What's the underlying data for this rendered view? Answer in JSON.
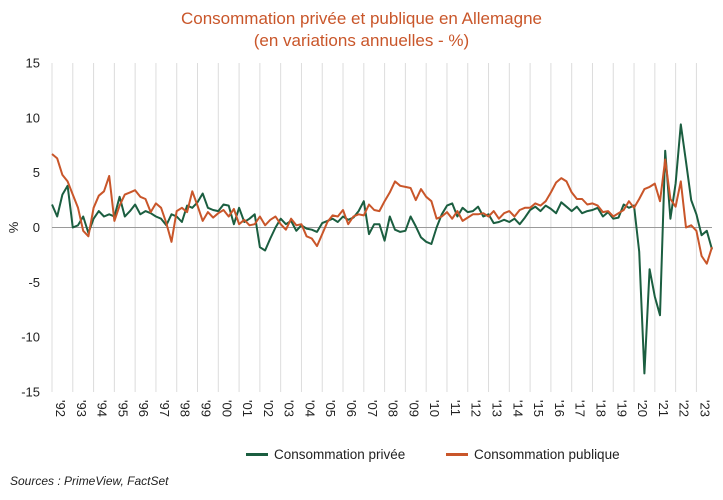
{
  "chart_data": {
    "type": "line",
    "title": "Consommation privée et publique en Allemagne",
    "subtitle": "(en variations annuelles - %)",
    "ylabel": "%",
    "ylim": [
      -15,
      15
    ],
    "yticks": [
      15,
      10,
      5,
      0,
      -5,
      -10,
      -15
    ],
    "xlim": [
      1992.0,
      2023.75
    ],
    "xticks": [
      {
        "year": 1992,
        "label": "'92"
      },
      {
        "year": 1993,
        "label": "'93"
      },
      {
        "year": 1994,
        "label": "'94"
      },
      {
        "year": 1995,
        "label": "'95"
      },
      {
        "year": 1996,
        "label": "'96"
      },
      {
        "year": 1997,
        "label": "'97"
      },
      {
        "year": 1998,
        "label": "'98"
      },
      {
        "year": 1999,
        "label": "'99"
      },
      {
        "year": 2000,
        "label": "'00"
      },
      {
        "year": 2001,
        "label": "'01"
      },
      {
        "year": 2002,
        "label": "'02"
      },
      {
        "year": 2003,
        "label": "'03"
      },
      {
        "year": 2004,
        "label": "'04"
      },
      {
        "year": 2005,
        "label": "'05"
      },
      {
        "year": 2006,
        "label": "'06"
      },
      {
        "year": 2007,
        "label": "'07"
      },
      {
        "year": 2008,
        "label": "'08"
      },
      {
        "year": 2009,
        "label": "'09"
      },
      {
        "year": 2010,
        "label": "'10"
      },
      {
        "year": 2011,
        "label": "'11"
      },
      {
        "year": 2012,
        "label": "'12"
      },
      {
        "year": 2013,
        "label": "'13"
      },
      {
        "year": 2014,
        "label": "'14"
      },
      {
        "year": 2015,
        "label": "'15"
      },
      {
        "year": 2016,
        "label": "'16"
      },
      {
        "year": 2017,
        "label": "'17"
      },
      {
        "year": 2018,
        "label": "'18"
      },
      {
        "year": 2019,
        "label": "'19"
      },
      {
        "year": 2020,
        "label": "'20"
      },
      {
        "year": 2021,
        "label": "'21"
      },
      {
        "year": 2022,
        "label": "'22"
      },
      {
        "year": 2023,
        "label": "'23"
      }
    ],
    "grid": "vertical",
    "legend_position": "bottom",
    "series": [
      {
        "name": "Consommation privée",
        "color": "#1B5E40",
        "points": [
          [
            1992.0,
            2.1
          ],
          [
            1992.25,
            1.0
          ],
          [
            1992.5,
            3.0
          ],
          [
            1992.75,
            3.8
          ],
          [
            1993.0,
            0.0
          ],
          [
            1993.25,
            0.2
          ],
          [
            1993.5,
            1.0
          ],
          [
            1993.75,
            -0.5
          ],
          [
            1994.0,
            0.8
          ],
          [
            1994.25,
            1.5
          ],
          [
            1994.5,
            1.0
          ],
          [
            1994.75,
            1.2
          ],
          [
            1995.0,
            1.0
          ],
          [
            1995.25,
            2.8
          ],
          [
            1995.5,
            1.0
          ],
          [
            1995.75,
            1.5
          ],
          [
            1996.0,
            2.1
          ],
          [
            1996.25,
            1.2
          ],
          [
            1996.5,
            1.5
          ],
          [
            1996.75,
            1.3
          ],
          [
            1997.0,
            1.0
          ],
          [
            1997.25,
            0.8
          ],
          [
            1997.5,
            0.2
          ],
          [
            1997.75,
            1.2
          ],
          [
            1998.0,
            1.0
          ],
          [
            1998.25,
            0.5
          ],
          [
            1998.5,
            2.0
          ],
          [
            1998.75,
            1.8
          ],
          [
            1999.0,
            2.3
          ],
          [
            1999.25,
            3.1
          ],
          [
            1999.5,
            1.8
          ],
          [
            1999.75,
            1.6
          ],
          [
            2000.0,
            1.5
          ],
          [
            2000.25,
            2.1
          ],
          [
            2000.5,
            2.0
          ],
          [
            2000.75,
            0.3
          ],
          [
            2001.0,
            1.8
          ],
          [
            2001.25,
            0.5
          ],
          [
            2001.5,
            0.8
          ],
          [
            2001.75,
            1.2
          ],
          [
            2002.0,
            -1.8
          ],
          [
            2002.25,
            -2.1
          ],
          [
            2002.5,
            -1.0
          ],
          [
            2002.75,
            0.0
          ],
          [
            2003.0,
            0.8
          ],
          [
            2003.25,
            0.3
          ],
          [
            2003.5,
            0.6
          ],
          [
            2003.75,
            -0.3
          ],
          [
            2004.0,
            0.2
          ],
          [
            2004.25,
            -0.1
          ],
          [
            2004.5,
            -0.2
          ],
          [
            2004.75,
            -0.4
          ],
          [
            2005.0,
            0.4
          ],
          [
            2005.25,
            0.6
          ],
          [
            2005.5,
            0.8
          ],
          [
            2005.75,
            0.5
          ],
          [
            2006.0,
            1.0
          ],
          [
            2006.25,
            0.7
          ],
          [
            2006.5,
            0.9
          ],
          [
            2006.75,
            1.5
          ],
          [
            2007.0,
            2.4
          ],
          [
            2007.25,
            -0.6
          ],
          [
            2007.5,
            0.3
          ],
          [
            2007.75,
            0.3
          ],
          [
            2008.0,
            -1.2
          ],
          [
            2008.25,
            1.0
          ],
          [
            2008.5,
            -0.2
          ],
          [
            2008.75,
            -0.4
          ],
          [
            2009.0,
            -0.3
          ],
          [
            2009.25,
            1.0
          ],
          [
            2009.5,
            0.1
          ],
          [
            2009.75,
            -0.9
          ],
          [
            2010.0,
            -1.3
          ],
          [
            2010.25,
            -1.5
          ],
          [
            2010.5,
            0.0
          ],
          [
            2010.75,
            1.2
          ],
          [
            2011.0,
            2.0
          ],
          [
            2011.25,
            2.2
          ],
          [
            2011.5,
            1.0
          ],
          [
            2011.75,
            1.8
          ],
          [
            2012.0,
            1.4
          ],
          [
            2012.25,
            1.5
          ],
          [
            2012.5,
            1.9
          ],
          [
            2012.75,
            1.0
          ],
          [
            2013.0,
            1.2
          ],
          [
            2013.25,
            0.4
          ],
          [
            2013.5,
            0.5
          ],
          [
            2013.75,
            0.7
          ],
          [
            2014.0,
            0.5
          ],
          [
            2014.25,
            0.8
          ],
          [
            2014.5,
            0.3
          ],
          [
            2014.75,
            0.9
          ],
          [
            2015.0,
            1.6
          ],
          [
            2015.25,
            1.9
          ],
          [
            2015.5,
            1.5
          ],
          [
            2015.75,
            2.0
          ],
          [
            2016.0,
            1.7
          ],
          [
            2016.25,
            1.3
          ],
          [
            2016.5,
            2.3
          ],
          [
            2016.75,
            1.9
          ],
          [
            2017.0,
            1.5
          ],
          [
            2017.25,
            1.9
          ],
          [
            2017.5,
            1.3
          ],
          [
            2017.75,
            1.5
          ],
          [
            2018.0,
            1.6
          ],
          [
            2018.25,
            1.8
          ],
          [
            2018.5,
            1.0
          ],
          [
            2018.75,
            1.4
          ],
          [
            2019.0,
            0.8
          ],
          [
            2019.25,
            0.9
          ],
          [
            2019.5,
            2.1
          ],
          [
            2019.75,
            1.8
          ],
          [
            2020.0,
            2.0
          ],
          [
            2020.25,
            -2.2
          ],
          [
            2020.5,
            -13.3
          ],
          [
            2020.75,
            -3.8
          ],
          [
            2021.0,
            -6.3
          ],
          [
            2021.25,
            -8.0
          ],
          [
            2021.5,
            7.0
          ],
          [
            2021.75,
            0.8
          ],
          [
            2022.0,
            4.0
          ],
          [
            2022.25,
            9.4
          ],
          [
            2022.5,
            6.0
          ],
          [
            2022.75,
            2.5
          ],
          [
            2023.0,
            1.2
          ],
          [
            2023.25,
            -0.7
          ],
          [
            2023.5,
            -0.3
          ],
          [
            2023.75,
            -2.0
          ]
        ]
      },
      {
        "name": "Consommation publique",
        "color": "#C9562A",
        "points": [
          [
            1992.0,
            6.7
          ],
          [
            1992.25,
            6.3
          ],
          [
            1992.5,
            4.8
          ],
          [
            1992.75,
            4.2
          ],
          [
            1993.0,
            3.0
          ],
          [
            1993.25,
            1.8
          ],
          [
            1993.5,
            -0.3
          ],
          [
            1993.75,
            -0.8
          ],
          [
            1994.0,
            1.8
          ],
          [
            1994.25,
            2.9
          ],
          [
            1994.5,
            3.3
          ],
          [
            1994.75,
            4.7
          ],
          [
            1995.0,
            0.6
          ],
          [
            1995.25,
            2.0
          ],
          [
            1995.5,
            3.0
          ],
          [
            1995.75,
            3.2
          ],
          [
            1996.0,
            3.4
          ],
          [
            1996.25,
            2.8
          ],
          [
            1996.5,
            2.6
          ],
          [
            1996.75,
            1.4
          ],
          [
            1997.0,
            2.2
          ],
          [
            1997.25,
            1.8
          ],
          [
            1997.5,
            0.4
          ],
          [
            1997.75,
            -1.3
          ],
          [
            1998.0,
            1.5
          ],
          [
            1998.25,
            1.8
          ],
          [
            1998.5,
            1.4
          ],
          [
            1998.75,
            3.3
          ],
          [
            1999.0,
            2.0
          ],
          [
            1999.25,
            0.6
          ],
          [
            1999.5,
            1.4
          ],
          [
            1999.75,
            0.9
          ],
          [
            2000.0,
            1.3
          ],
          [
            2000.25,
            1.6
          ],
          [
            2000.5,
            1.0
          ],
          [
            2000.75,
            1.7
          ],
          [
            2001.0,
            0.3
          ],
          [
            2001.25,
            0.7
          ],
          [
            2001.5,
            0.2
          ],
          [
            2001.75,
            0.3
          ],
          [
            2002.0,
            1.0
          ],
          [
            2002.25,
            0.2
          ],
          [
            2002.5,
            0.7
          ],
          [
            2002.75,
            1.0
          ],
          [
            2003.0,
            0.3
          ],
          [
            2003.25,
            -0.2
          ],
          [
            2003.5,
            0.8
          ],
          [
            2003.75,
            0.2
          ],
          [
            2004.0,
            0.3
          ],
          [
            2004.25,
            -0.8
          ],
          [
            2004.5,
            -1.0
          ],
          [
            2004.75,
            -1.7
          ],
          [
            2005.0,
            -0.6
          ],
          [
            2005.25,
            0.5
          ],
          [
            2005.5,
            1.1
          ],
          [
            2005.75,
            1.0
          ],
          [
            2006.0,
            1.6
          ],
          [
            2006.25,
            0.3
          ],
          [
            2006.5,
            1.0
          ],
          [
            2006.75,
            1.2
          ],
          [
            2007.0,
            1.1
          ],
          [
            2007.25,
            2.1
          ],
          [
            2007.5,
            1.6
          ],
          [
            2007.75,
            1.5
          ],
          [
            2008.0,
            2.4
          ],
          [
            2008.25,
            3.2
          ],
          [
            2008.5,
            4.2
          ],
          [
            2008.75,
            3.8
          ],
          [
            2009.0,
            3.7
          ],
          [
            2009.25,
            3.6
          ],
          [
            2009.5,
            2.5
          ],
          [
            2009.75,
            3.5
          ],
          [
            2010.0,
            2.8
          ],
          [
            2010.25,
            2.4
          ],
          [
            2010.5,
            0.8
          ],
          [
            2010.75,
            1.0
          ],
          [
            2011.0,
            1.4
          ],
          [
            2011.25,
            0.8
          ],
          [
            2011.5,
            1.5
          ],
          [
            2011.75,
            0.6
          ],
          [
            2012.0,
            0.9
          ],
          [
            2012.25,
            1.2
          ],
          [
            2012.5,
            1.2
          ],
          [
            2012.75,
            1.3
          ],
          [
            2013.0,
            1.0
          ],
          [
            2013.25,
            1.5
          ],
          [
            2013.5,
            0.8
          ],
          [
            2013.75,
            1.3
          ],
          [
            2014.0,
            1.5
          ],
          [
            2014.25,
            1.0
          ],
          [
            2014.5,
            1.6
          ],
          [
            2014.75,
            1.8
          ],
          [
            2015.0,
            1.8
          ],
          [
            2015.25,
            2.2
          ],
          [
            2015.5,
            2.0
          ],
          [
            2015.75,
            2.4
          ],
          [
            2016.0,
            3.2
          ],
          [
            2016.25,
            4.1
          ],
          [
            2016.5,
            4.5
          ],
          [
            2016.75,
            4.2
          ],
          [
            2017.0,
            3.2
          ],
          [
            2017.25,
            2.6
          ],
          [
            2017.5,
            2.6
          ],
          [
            2017.75,
            2.1
          ],
          [
            2018.0,
            2.2
          ],
          [
            2018.25,
            2.0
          ],
          [
            2018.5,
            1.4
          ],
          [
            2018.75,
            1.5
          ],
          [
            2019.0,
            1.0
          ],
          [
            2019.25,
            1.3
          ],
          [
            2019.5,
            1.6
          ],
          [
            2019.75,
            2.4
          ],
          [
            2020.0,
            1.8
          ],
          [
            2020.25,
            2.6
          ],
          [
            2020.5,
            3.5
          ],
          [
            2020.75,
            3.7
          ],
          [
            2021.0,
            4.0
          ],
          [
            2021.25,
            2.4
          ],
          [
            2021.5,
            6.2
          ],
          [
            2021.75,
            2.6
          ],
          [
            2022.0,
            1.9
          ],
          [
            2022.25,
            4.2
          ],
          [
            2022.5,
            0.0
          ],
          [
            2022.75,
            0.2
          ],
          [
            2023.0,
            -0.3
          ],
          [
            2023.25,
            -2.6
          ],
          [
            2023.5,
            -3.3
          ],
          [
            2023.75,
            -1.8
          ]
        ]
      }
    ]
  },
  "source": "Sources : PrimeView, FactSet"
}
